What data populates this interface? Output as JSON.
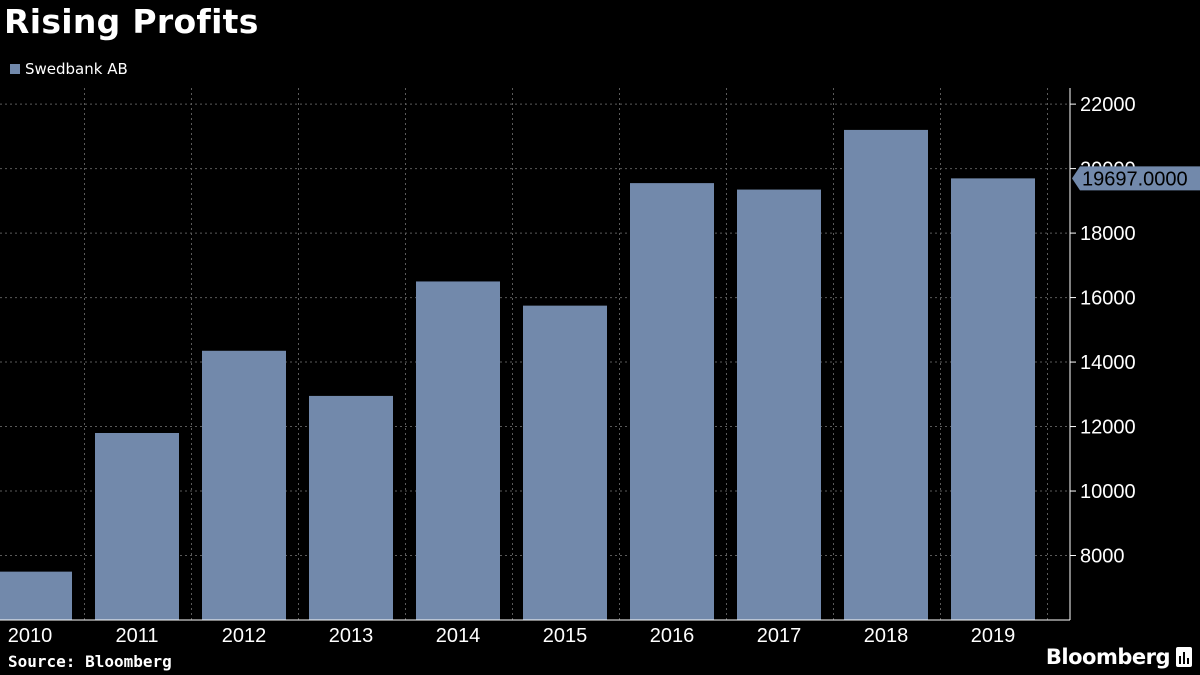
{
  "title": "Rising Profits",
  "source": "Source: Bloomberg",
  "brand": "Bloomberg",
  "brand_icon": "bloomberg-terminal-icon",
  "colors": {
    "background": "#000000",
    "bar": "#7289ab",
    "text": "#ffffff",
    "grid": "#5a5a5a",
    "axis": "#ffffff"
  },
  "chart_data": {
    "type": "bar",
    "categories": [
      "2010",
      "2011",
      "2012",
      "2013",
      "2014",
      "2015",
      "2016",
      "2017",
      "2018",
      "2019"
    ],
    "series": [
      {
        "name": "Swedbank AB",
        "values": [
          7500,
          11800,
          14350,
          12950,
          16500,
          15750,
          19550,
          19350,
          21200,
          19697
        ]
      }
    ],
    "y_ticks": [
      "8000",
      "10000",
      "12000",
      "14000",
      "16000",
      "18000",
      "20000",
      "22000"
    ],
    "y_axis_side": "right",
    "ylim": [
      6000,
      22500
    ],
    "grid": true,
    "legend_position": "top-left",
    "last_value_label": "19697.0000"
  }
}
